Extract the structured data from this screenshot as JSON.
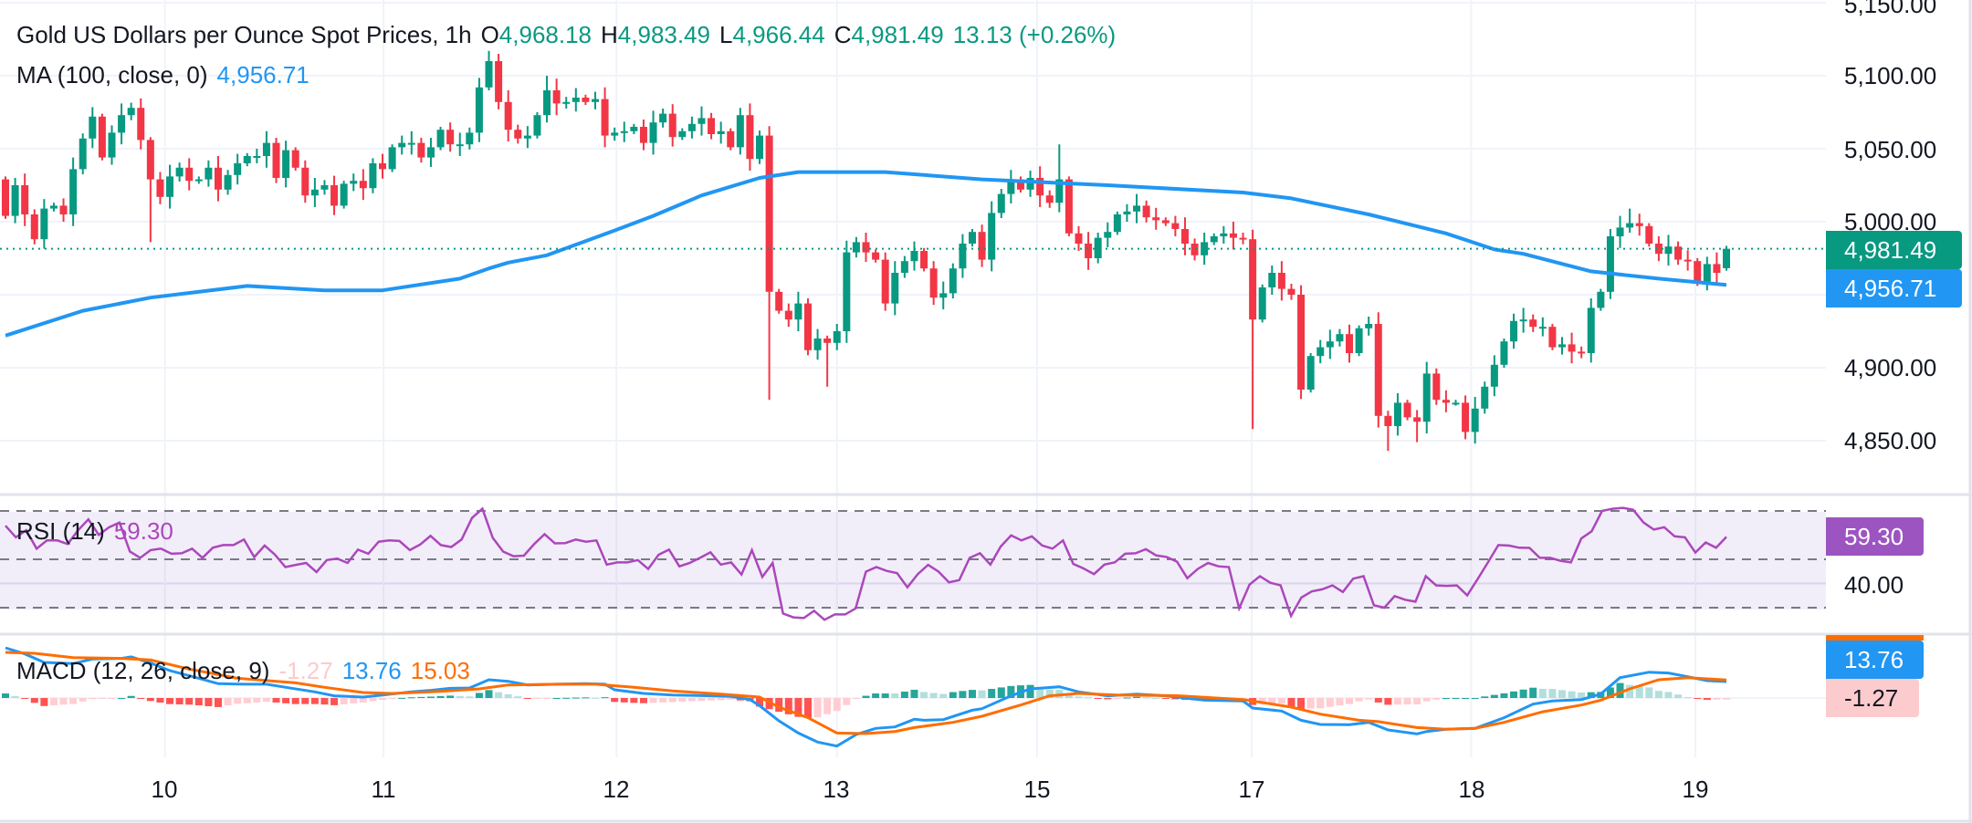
{
  "header": {
    "title": "Gold US Dollars per Ounce Spot Prices, 1h",
    "o_label": "O",
    "o": "4,968.18",
    "h_label": "H",
    "h": "4,983.49",
    "l_label": "L",
    "l": "4,966.44",
    "c_label": "C",
    "c": "4,981.49",
    "change": "13.13 (+0.26%)"
  },
  "ma_legend": {
    "label": "MA (100, close, 0)",
    "value": "4,956.71"
  },
  "rsi_legend": {
    "label": "RSI (14)",
    "value": "59.30"
  },
  "macd_legend": {
    "label": "MACD (12, 26, close, 9)",
    "hist": "-1.27",
    "macd": "13.76",
    "signal": "15.03"
  },
  "price_axis": {
    "ticks": [
      "5,150.00",
      "5,100.00",
      "5,050.00",
      "5,000.00",
      "4,900.00",
      "4,850.00"
    ],
    "last_price_badge": "4,981.49",
    "ma_badge": "4,956.71"
  },
  "rsi_axis": {
    "badge": "59.30",
    "tick": "40.00"
  },
  "macd_axis": {
    "macd_badge": "13.76",
    "hist_badge": "-1.27"
  },
  "time_axis": {
    "ticks": [
      "10",
      "11",
      "12",
      "13",
      "15",
      "17",
      "18",
      "19"
    ]
  },
  "colors": {
    "up": "#089981",
    "down": "#f23645",
    "ma": "#2196f3",
    "rsi": "#ab47bc",
    "rsi_band": "#7e57c2",
    "macd": "#2196f3",
    "signal": "#ff6d00",
    "hist_up_strong": "#26a69a",
    "hist_up_weak": "#b2dfdb",
    "hist_down_strong": "#ff5252",
    "hist_down_weak": "#ffcdd2",
    "grid": "#f0f3fa",
    "text": "#131722"
  },
  "chart_data": [
    {
      "type": "candlestick",
      "title": "Gold US Dollars per Ounce Spot Prices, 1h",
      "ylim": [
        4825,
        5150
      ],
      "y_ticks": [
        5150,
        5100,
        5050,
        5000,
        4900,
        4850
      ],
      "x_ticks": [
        {
          "label": "10",
          "bar": 16.5
        },
        {
          "label": "11",
          "bar": 39.1
        },
        {
          "label": "12",
          "bar": 63.2
        },
        {
          "label": "13",
          "bar": 86
        },
        {
          "label": "15",
          "bar": 106.7
        },
        {
          "label": "17",
          "bar": 128.9
        },
        {
          "label": "18",
          "bar": 151.6
        },
        {
          "label": "19",
          "bar": 174.8
        }
      ],
      "grid": true,
      "first_open": 5029,
      "last_open": 4968.18,
      "closes": [
        5004,
        5025,
        5005,
        4988,
        5009,
        5011,
        5005,
        5036,
        5057,
        5072,
        5044,
        5061,
        5073,
        5078,
        5056,
        5029,
        5017,
        5031,
        5037,
        5028,
        5029,
        5037,
        5022,
        5032,
        5040,
        5045,
        5045,
        5054,
        5030,
        5049,
        5037,
        5018,
        5022,
        5025,
        5011,
        5026,
        5028,
        5023,
        5040,
        5036,
        5051,
        5054,
        5054,
        5044,
        5051,
        5063,
        5053,
        5053,
        5061,
        5092,
        5110,
        5082,
        5063,
        5057,
        5059,
        5073,
        5090,
        5081,
        5082,
        5085,
        5082,
        5084,
        5059,
        5061,
        5062,
        5065,
        5054,
        5068,
        5074,
        5058,
        5062,
        5067,
        5071,
        5060,
        5062,
        5051,
        5073,
        5043,
        5059,
        4952,
        4939,
        4933,
        4944,
        4912,
        4920,
        4917,
        4925,
        4979,
        4986,
        4979,
        4974,
        4944,
        4965,
        4973,
        4980,
        4968,
        4948,
        4951,
        4968,
        4985,
        4993,
        4974,
        5006,
        5019,
        5029,
        5022,
        5030,
        5018,
        5013,
        5029,
        4992,
        4985,
        4975,
        4989,
        4993,
        5005,
        5007,
        5011,
        5003,
        5001,
        4999,
        4995,
        4985,
        4977,
        4986,
        4990,
        4992,
        4989,
        4988,
        4933,
        4955,
        4965,
        4954,
        4950,
        4885,
        4908,
        4914,
        4918,
        4923,
        4910,
        4927,
        4930,
        4867,
        4860,
        4876,
        4866,
        4863,
        4896,
        4878,
        4876,
        4876,
        4856,
        4872,
        4887,
        4902,
        4918,
        4932,
        4933,
        4928,
        4928,
        4914,
        4916,
        4911,
        4910,
        4941,
        4952,
        4990,
        4996,
        4999,
        4997,
        4985,
        4978,
        4983,
        4974,
        4973,
        4958,
        4971,
        4965,
        4981.49
      ],
      "wick_extremes": [
        {
          "bar": 15,
          "low": 4986
        },
        {
          "bar": 50,
          "high": 5117
        },
        {
          "bar": 56,
          "high": 5100
        },
        {
          "bar": 79,
          "low": 4878
        },
        {
          "bar": 85,
          "low": 4887
        },
        {
          "bar": 109,
          "high": 5053
        },
        {
          "bar": 129,
          "low": 4858
        },
        {
          "bar": 143,
          "low": 4843
        },
        {
          "bar": 146,
          "low": 4849
        },
        {
          "bar": 168,
          "high": 5009
        },
        {
          "bar": 178,
          "high": 4983.49,
          "low": 4966.44
        }
      ],
      "ma100": [
        [
          0,
          4922
        ],
        [
          8,
          4939
        ],
        [
          15,
          4948
        ],
        [
          25,
          4956
        ],
        [
          33,
          4953
        ],
        [
          39,
          4953
        ],
        [
          47,
          4961
        ],
        [
          50,
          4968
        ],
        [
          52,
          4972
        ],
        [
          56,
          4977
        ],
        [
          63,
          4994
        ],
        [
          67,
          5004
        ],
        [
          72,
          5018
        ],
        [
          78,
          5030
        ],
        [
          82,
          5034
        ],
        [
          91,
          5034
        ],
        [
          101,
          5029
        ],
        [
          114,
          5025
        ],
        [
          128,
          5020
        ],
        [
          133,
          5016
        ],
        [
          141,
          5005
        ],
        [
          149,
          4992
        ],
        [
          154,
          4981
        ],
        [
          157,
          4978
        ],
        [
          164,
          4966
        ],
        [
          171,
          4961
        ],
        [
          178,
          4956.71
        ]
      ],
      "last_price": 4981.49
    },
    {
      "type": "line",
      "title": "RSI (14)",
      "ylim": [
        0,
        100
      ],
      "levels": [
        70,
        50,
        30
      ],
      "y_ticks": [
        40
      ],
      "values": [
        63.9,
        59.1,
        62,
        54.4,
        57.8,
        57.8,
        56.3,
        62,
        66.5,
        60.1,
        63.3,
        65.2,
        53.2,
        50.6,
        53.8,
        54.4,
        52.3,
        52.5,
        54.4,
        50.6,
        54.8,
        55.9,
        55.9,
        58.2,
        50.9,
        55.7,
        51.9,
        46.8,
        47.7,
        48.5,
        44.7,
        49.7,
        50.3,
        48.5,
        54,
        52.3,
        57.3,
        57.8,
        57.6,
        53.8,
        56.1,
        59.7,
        55.9,
        55.1,
        58.2,
        67.1,
        70.9,
        58.9,
        53.2,
        51.3,
        51.5,
        56.3,
        60.4,
        56.6,
        56.7,
        58.2,
        57.3,
        57.8,
        47.8,
        48.7,
        48.7,
        49.7,
        46,
        51.9,
        54,
        47.1,
        48.5,
        50.6,
        52.9,
        47.8,
        48.7,
        43.7,
        53.8,
        42.7,
        48.5,
        27.6,
        26,
        25.7,
        28.7,
        25,
        27.2,
        27.2,
        29.7,
        44.9,
        46.8,
        45.2,
        44.3,
        38.4,
        43.9,
        47.7,
        44.9,
        40.5,
        41.4,
        50.6,
        52.5,
        47.8,
        55.3,
        59.9,
        57.8,
        59.5,
        55.7,
        54.4,
        57.8,
        48.1,
        46.2,
        43.9,
        47.8,
        48.7,
        52.3,
        52.5,
        54.2,
        51.6,
        51,
        49,
        42.2,
        46,
        48.5,
        47.1,
        46.8,
        29.7,
        39.6,
        43,
        40.3,
        39.2,
        26.6,
        34.2,
        36.7,
        37.6,
        39.2,
        36.5,
        42,
        43,
        31,
        30,
        34.8,
        33.3,
        32.5,
        43,
        39.2,
        39,
        39.2,
        35.1,
        41.8,
        48.7,
        55.9,
        55.7,
        54.8,
        54.7,
        50.6,
        50.6,
        49.4,
        48.7,
        58.6,
        61.6,
        70,
        70.9,
        71.3,
        70.5,
        65.2,
        62.3,
        63.3,
        59.5,
        59.1,
        52.8,
        57,
        54.8,
        59.3
      ]
    },
    {
      "type": "macd",
      "title": "MACD (12, 26, close, 9)",
      "macd": [
        [
          0,
          42
        ],
        [
          2,
          36.9
        ],
        [
          4,
          29.8
        ],
        [
          7,
          28.8
        ],
        [
          9,
          32.6
        ],
        [
          12,
          33.1
        ],
        [
          13,
          34.4
        ],
        [
          15,
          29.3
        ],
        [
          17,
          22.9
        ],
        [
          20,
          16.5
        ],
        [
          22,
          12
        ],
        [
          25,
          11.5
        ],
        [
          27,
          11.5
        ],
        [
          29,
          8.9
        ],
        [
          32,
          5.1
        ],
        [
          34,
          1.8
        ],
        [
          37,
          0.8
        ],
        [
          39,
          2.5
        ],
        [
          42,
          5.1
        ],
        [
          44,
          6.4
        ],
        [
          46,
          8.1
        ],
        [
          48,
          8.4
        ],
        [
          50,
          15.3
        ],
        [
          52,
          14
        ],
        [
          54,
          10.9
        ],
        [
          57,
          11.5
        ],
        [
          60,
          12
        ],
        [
          62,
          11.5
        ],
        [
          63,
          6.9
        ],
        [
          66,
          3.8
        ],
        [
          69,
          2.5
        ],
        [
          72,
          2
        ],
        [
          75,
          1.3
        ],
        [
          77,
          -1.3
        ],
        [
          78,
          -6.4
        ],
        [
          80,
          -19.1
        ],
        [
          82,
          -29.3
        ],
        [
          84,
          -36.9
        ],
        [
          86,
          -40.2
        ],
        [
          88,
          -30.5
        ],
        [
          90,
          -25.4
        ],
        [
          92,
          -24.2
        ],
        [
          94,
          -17.8
        ],
        [
          95,
          -18.6
        ],
        [
          97,
          -18.1
        ],
        [
          100,
          -10.2
        ],
        [
          101,
          -8.9
        ],
        [
          104,
          1.8
        ],
        [
          106,
          7.6
        ],
        [
          109,
          9.4
        ],
        [
          111,
          5.1
        ],
        [
          114,
          1.8
        ],
        [
          117,
          3.3
        ],
        [
          120,
          1.8
        ],
        [
          124,
          -1.8
        ],
        [
          128,
          -2.5
        ],
        [
          129,
          -8.4
        ],
        [
          132,
          -10.9
        ],
        [
          134,
          -18.6
        ],
        [
          136,
          -22.1
        ],
        [
          139,
          -22.4
        ],
        [
          141,
          -20.4
        ],
        [
          143,
          -26.7
        ],
        [
          146,
          -30
        ],
        [
          147,
          -28
        ],
        [
          149,
          -26.2
        ],
        [
          152,
          -25.4
        ],
        [
          155,
          -16.5
        ],
        [
          158,
          -5.1
        ],
        [
          160,
          -2.5
        ],
        [
          163,
          -1.3
        ],
        [
          165,
          3.3
        ],
        [
          167,
          17
        ],
        [
          170,
          21.6
        ],
        [
          172,
          20.9
        ],
        [
          174,
          17.8
        ],
        [
          176,
          14.5
        ],
        [
          178,
          13.76
        ]
      ],
      "signal": [
        [
          0,
          38.2
        ],
        [
          3,
          37.4
        ],
        [
          7,
          33.8
        ],
        [
          12,
          33.1
        ],
        [
          15,
          31.8
        ],
        [
          19,
          24.2
        ],
        [
          24,
          16.5
        ],
        [
          30,
          12.7
        ],
        [
          33,
          8.9
        ],
        [
          37,
          4.6
        ],
        [
          40,
          3.8
        ],
        [
          45,
          5.6
        ],
        [
          49,
          7.6
        ],
        [
          52,
          10.9
        ],
        [
          57,
          11.5
        ],
        [
          61,
          11.5
        ],
        [
          65,
          8.9
        ],
        [
          69,
          5.9
        ],
        [
          74,
          3.3
        ],
        [
          78,
          0.8
        ],
        [
          80,
          -7.6
        ],
        [
          83,
          -16.5
        ],
        [
          86,
          -29.3
        ],
        [
          89,
          -29.8
        ],
        [
          92,
          -28
        ],
        [
          94,
          -24.7
        ],
        [
          98,
          -20.4
        ],
        [
          101,
          -15.3
        ],
        [
          105,
          -5.9
        ],
        [
          108,
          1.8
        ],
        [
          111,
          3.8
        ],
        [
          115,
          2.5
        ],
        [
          121,
          2
        ],
        [
          128,
          -1.3
        ],
        [
          133,
          -7.6
        ],
        [
          136,
          -13.5
        ],
        [
          140,
          -18.6
        ],
        [
          142,
          -19.8
        ],
        [
          146,
          -24.7
        ],
        [
          149,
          -26.2
        ],
        [
          152,
          -25.4
        ],
        [
          155,
          -20.4
        ],
        [
          159,
          -11.5
        ],
        [
          163,
          -5.9
        ],
        [
          165,
          -1.8
        ],
        [
          168,
          7.6
        ],
        [
          171,
          15.3
        ],
        [
          174,
          17
        ],
        [
          178,
          15.03
        ]
      ],
      "last": {
        "hist": -1.27,
        "macd": 13.76,
        "signal": 15.03
      }
    }
  ]
}
